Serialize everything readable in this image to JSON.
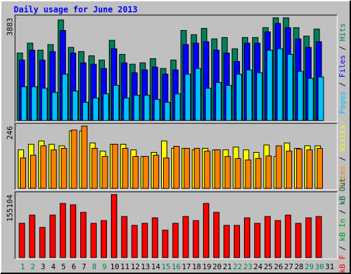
{
  "title": "Daily usage for June 2013",
  "chart_data": [
    {
      "type": "bar",
      "ylim": [
        0,
        3883
      ],
      "yticks": [
        3883
      ],
      "series": [
        {
          "name": "Hits",
          "color": "#00805c",
          "values": [
            2553,
            2926,
            2660,
            2872,
            3803,
            2766,
            2606,
            2447,
            2287,
            3032,
            2500,
            2128,
            2181,
            2340,
            1968,
            2287,
            3404,
            3245,
            3484,
            3085,
            3138,
            2713,
            3138,
            3138,
            3511,
            3883,
            3883,
            3511,
            3191,
            3458,
            null
          ]
        },
        {
          "name": "Files",
          "color": "#0000ff",
          "values": [
            2287,
            2660,
            2287,
            2606,
            3404,
            2553,
            2181,
            2128,
            1968,
            2713,
            2181,
            1808,
            1915,
            2021,
            1755,
            1915,
            2872,
            2926,
            2979,
            2660,
            2553,
            2234,
            2926,
            2926,
            3351,
            3670,
            3511,
            3085,
            2766,
            2979,
            null
          ]
        },
        {
          "name": "Pages",
          "color": "#00c0ff",
          "values": [
            1277,
            1277,
            1223,
            1064,
            1755,
            1117,
            691,
            851,
            1011,
            1330,
            851,
            958,
            958,
            798,
            691,
            1011,
            1755,
            1968,
            1223,
            1436,
            1330,
            1755,
            1915,
            1808,
            2660,
            2713,
            2500,
            1862,
            1596,
            1649,
            null
          ]
        }
      ]
    },
    {
      "type": "bar",
      "ylim": [
        0,
        246
      ],
      "yticks": [
        246
      ],
      "series": [
        {
          "name": "Visits",
          "color": "#ffff00",
          "values": [
            152,
            174,
            187,
            174,
            168,
            227,
            227,
            179,
            147,
            174,
            174,
            152,
            126,
            142,
            187,
            158,
            158,
            152,
            158,
            152,
            152,
            163,
            152,
            142,
            171,
            126,
            179,
            158,
            168,
            168,
            null
          ]
        },
        {
          "name": "Sites",
          "color": "#ff8000",
          "values": [
            120,
            131,
            168,
            152,
            158,
            230,
            246,
            158,
            126,
            174,
            158,
            126,
            126,
            131,
            120,
            166,
            158,
            158,
            147,
            152,
            126,
            118,
            112,
            118,
            128,
            168,
            147,
            155,
            152,
            158,
            null
          ]
        }
      ]
    },
    {
      "type": "bar",
      "ylim": [
        0,
        155104
      ],
      "yticks": [
        155104
      ],
      "legend": [
        {
          "name": "kB F",
          "color": "#ff0000"
        },
        {
          "name": "kB In",
          "color": "#00a000"
        },
        {
          "name": "kB Out",
          "color": "#006040"
        }
      ],
      "categories": [
        "1",
        "2",
        "3",
        "4",
        "5",
        "6",
        "7",
        "8",
        "9",
        "10",
        "11",
        "12",
        "13",
        "14",
        "15",
        "16",
        "17",
        "18",
        "19",
        "20",
        "21",
        "22",
        "23",
        "24",
        "25",
        "26",
        "27",
        "28",
        "29",
        "30",
        "31"
      ],
      "category_colors": [
        "#008040",
        "#008040",
        "#000000",
        "#000000",
        "#000000",
        "#000000",
        "#000000",
        "#008040",
        "#008040",
        "#000000",
        "#000000",
        "#000000",
        "#000000",
        "#000000",
        "#008040",
        "#008040",
        "#000000",
        "#000000",
        "#000000",
        "#000000",
        "#000000",
        "#008040",
        "#008040",
        "#000000",
        "#000000",
        "#000000",
        "#000000",
        "#000000",
        "#008040",
        "#008040",
        "#000000"
      ],
      "series": [
        {
          "name": "kB F",
          "color": "#ff0000",
          "values": [
            84296,
            104528,
            74180,
            104528,
            133187,
            129815,
            111271,
            84296,
            91040,
            155104,
            101155,
            79237,
            84296,
            97783,
            67436,
            84296,
            101155,
            91040,
            133187,
            111271,
            79237,
            79237,
            97783,
            84296,
            101155,
            91040,
            104528,
            84296,
            97783,
            101155,
            null
          ]
        }
      ]
    }
  ]
}
